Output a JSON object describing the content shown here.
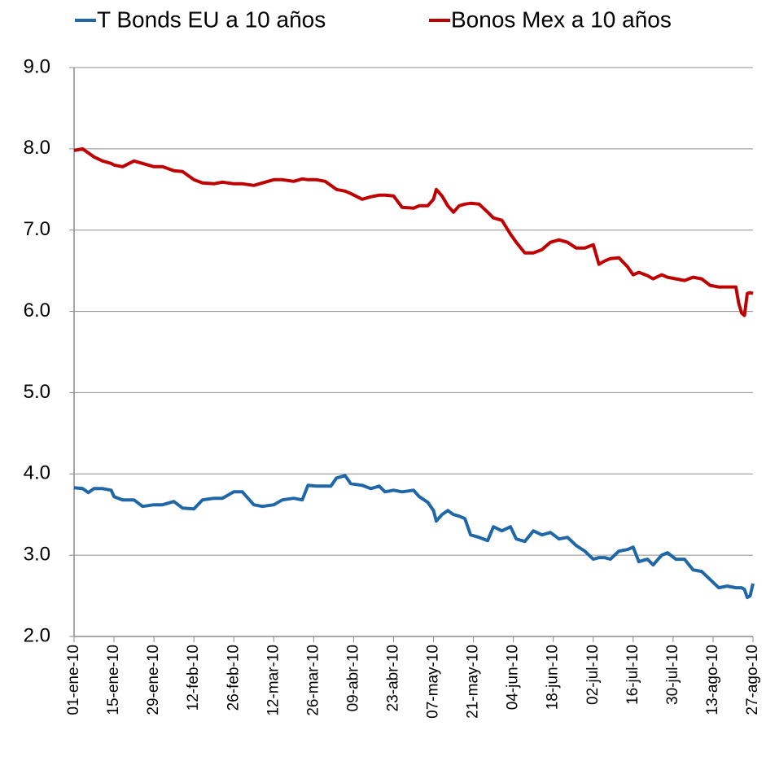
{
  "chart_data": {
    "type": "line",
    "x": [
      "2010-01-01",
      "2010-01-04",
      "2010-01-06",
      "2010-01-08",
      "2010-01-11",
      "2010-01-14",
      "2010-01-15",
      "2010-01-18",
      "2010-01-22",
      "2010-01-25",
      "2010-01-29",
      "2010-02-01",
      "2010-02-05",
      "2010-02-08",
      "2010-02-12",
      "2010-02-15",
      "2010-02-19",
      "2010-02-22",
      "2010-02-26",
      "2010-03-01",
      "2010-03-05",
      "2010-03-08",
      "2010-03-12",
      "2010-03-15",
      "2010-03-19",
      "2010-03-22",
      "2010-03-24",
      "2010-03-27",
      "2010-03-30",
      "2010-04-01",
      "2010-04-03",
      "2010-04-06",
      "2010-04-08",
      "2010-04-12",
      "2010-04-15",
      "2010-04-18",
      "2010-04-20",
      "2010-04-23",
      "2010-04-26",
      "2010-04-30",
      "2010-05-02",
      "2010-05-05",
      "2010-05-07",
      "2010-05-08",
      "2010-05-10",
      "2010-05-12",
      "2010-05-14",
      "2010-05-16",
      "2010-05-18",
      "2010-05-20",
      "2010-05-23",
      "2010-05-26",
      "2010-05-28",
      "2010-05-31",
      "2010-06-03",
      "2010-06-05",
      "2010-06-08",
      "2010-06-11",
      "2010-06-14",
      "2010-06-17",
      "2010-06-20",
      "2010-06-23",
      "2010-06-26",
      "2010-06-29",
      "2010-07-02",
      "2010-07-04",
      "2010-07-06",
      "2010-07-08",
      "2010-07-11",
      "2010-07-14",
      "2010-07-16",
      "2010-07-18",
      "2010-07-21",
      "2010-07-23",
      "2010-07-26",
      "2010-07-28",
      "2010-07-31",
      "2010-08-03",
      "2010-08-06",
      "2010-08-09",
      "2010-08-12",
      "2010-08-15",
      "2010-08-18",
      "2010-08-21",
      "2010-08-22",
      "2010-08-23",
      "2010-08-24",
      "2010-08-25",
      "2010-08-26",
      "2010-08-27"
    ],
    "series": [
      {
        "name": "T Bonds EU a 10 años",
        "color": "#1f67a6",
        "values": [
          3.83,
          3.82,
          3.77,
          3.82,
          3.82,
          3.8,
          3.72,
          3.68,
          3.68,
          3.6,
          3.62,
          3.62,
          3.66,
          3.58,
          3.57,
          3.68,
          3.7,
          3.7,
          3.78,
          3.78,
          3.62,
          3.6,
          3.62,
          3.68,
          3.7,
          3.68,
          3.86,
          3.85,
          3.85,
          3.85,
          3.95,
          3.98,
          3.88,
          3.86,
          3.82,
          3.85,
          3.78,
          3.8,
          3.78,
          3.8,
          3.72,
          3.65,
          3.55,
          3.42,
          3.5,
          3.55,
          3.5,
          3.48,
          3.45,
          3.25,
          3.22,
          3.18,
          3.35,
          3.3,
          3.35,
          3.2,
          3.17,
          3.3,
          3.25,
          3.28,
          3.2,
          3.22,
          3.12,
          3.05,
          2.95,
          2.97,
          2.97,
          2.95,
          3.05,
          3.07,
          3.1,
          2.92,
          2.95,
          2.88,
          3.0,
          3.03,
          2.95,
          2.95,
          2.82,
          2.8,
          2.7,
          2.6,
          2.62,
          2.6,
          2.6,
          2.6,
          2.58,
          2.48,
          2.5,
          2.65
        ]
      },
      {
        "name": "Bonos Mex a 10 años",
        "color": "#c00000",
        "values": [
          7.98,
          8.0,
          7.95,
          7.9,
          7.85,
          7.82,
          7.8,
          7.78,
          7.85,
          7.82,
          7.78,
          7.78,
          7.73,
          7.72,
          7.62,
          7.58,
          7.57,
          7.59,
          7.57,
          7.57,
          7.55,
          7.58,
          7.62,
          7.62,
          7.6,
          7.63,
          7.62,
          7.62,
          7.6,
          7.55,
          7.5,
          7.48,
          7.45,
          7.38,
          7.41,
          7.43,
          7.43,
          7.42,
          7.28,
          7.27,
          7.3,
          7.3,
          7.38,
          7.5,
          7.42,
          7.3,
          7.22,
          7.3,
          7.32,
          7.33,
          7.32,
          7.22,
          7.15,
          7.12,
          6.95,
          6.85,
          6.72,
          6.72,
          6.76,
          6.85,
          6.88,
          6.85,
          6.78,
          6.78,
          6.82,
          6.58,
          6.62,
          6.65,
          6.66,
          6.55,
          6.45,
          6.48,
          6.44,
          6.4,
          6.45,
          6.42,
          6.4,
          6.38,
          6.42,
          6.4,
          6.32,
          6.3,
          6.3,
          6.3,
          6.1,
          5.98,
          5.95,
          6.22,
          6.23,
          6.22
        ]
      }
    ],
    "xlim": [
      "2010-01-01",
      "2010-08-27"
    ],
    "xticks": [
      {
        "value": "2010-01-01",
        "label": "01-ene-10"
      },
      {
        "value": "2010-01-15",
        "label": "15-ene-10"
      },
      {
        "value": "2010-01-29",
        "label": "29-ene-10"
      },
      {
        "value": "2010-02-12",
        "label": "12-feb-10"
      },
      {
        "value": "2010-02-26",
        "label": "26-feb-10"
      },
      {
        "value": "2010-03-12",
        "label": "12-mar-10"
      },
      {
        "value": "2010-03-26",
        "label": "26-mar-10"
      },
      {
        "value": "2010-04-09",
        "label": "09-abr-10"
      },
      {
        "value": "2010-04-23",
        "label": "23-abr-10"
      },
      {
        "value": "2010-05-07",
        "label": "07-may-10"
      },
      {
        "value": "2010-05-21",
        "label": "21-may-10"
      },
      {
        "value": "2010-06-04",
        "label": "04-jun-10"
      },
      {
        "value": "2010-06-18",
        "label": "18-jun-10"
      },
      {
        "value": "2010-07-02",
        "label": "02-jul-10"
      },
      {
        "value": "2010-07-16",
        "label": "16-jul-10"
      },
      {
        "value": "2010-07-30",
        "label": "30-jul-10"
      },
      {
        "value": "2010-08-13",
        "label": "13-ago-10"
      },
      {
        "value": "2010-08-27",
        "label": "27-ago-10"
      }
    ],
    "ylim": [
      2,
      9
    ],
    "yticks": [
      {
        "value": 2,
        "label": "2.0"
      },
      {
        "value": 3,
        "label": "3.0"
      },
      {
        "value": 4,
        "label": "4.0"
      },
      {
        "value": 5,
        "label": "5.0"
      },
      {
        "value": 6,
        "label": "6.0"
      },
      {
        "value": 7,
        "label": "7.0"
      },
      {
        "value": 8,
        "label": "8.0"
      },
      {
        "value": 9,
        "label": "9.0"
      }
    ],
    "grid": true,
    "legend": "top"
  }
}
